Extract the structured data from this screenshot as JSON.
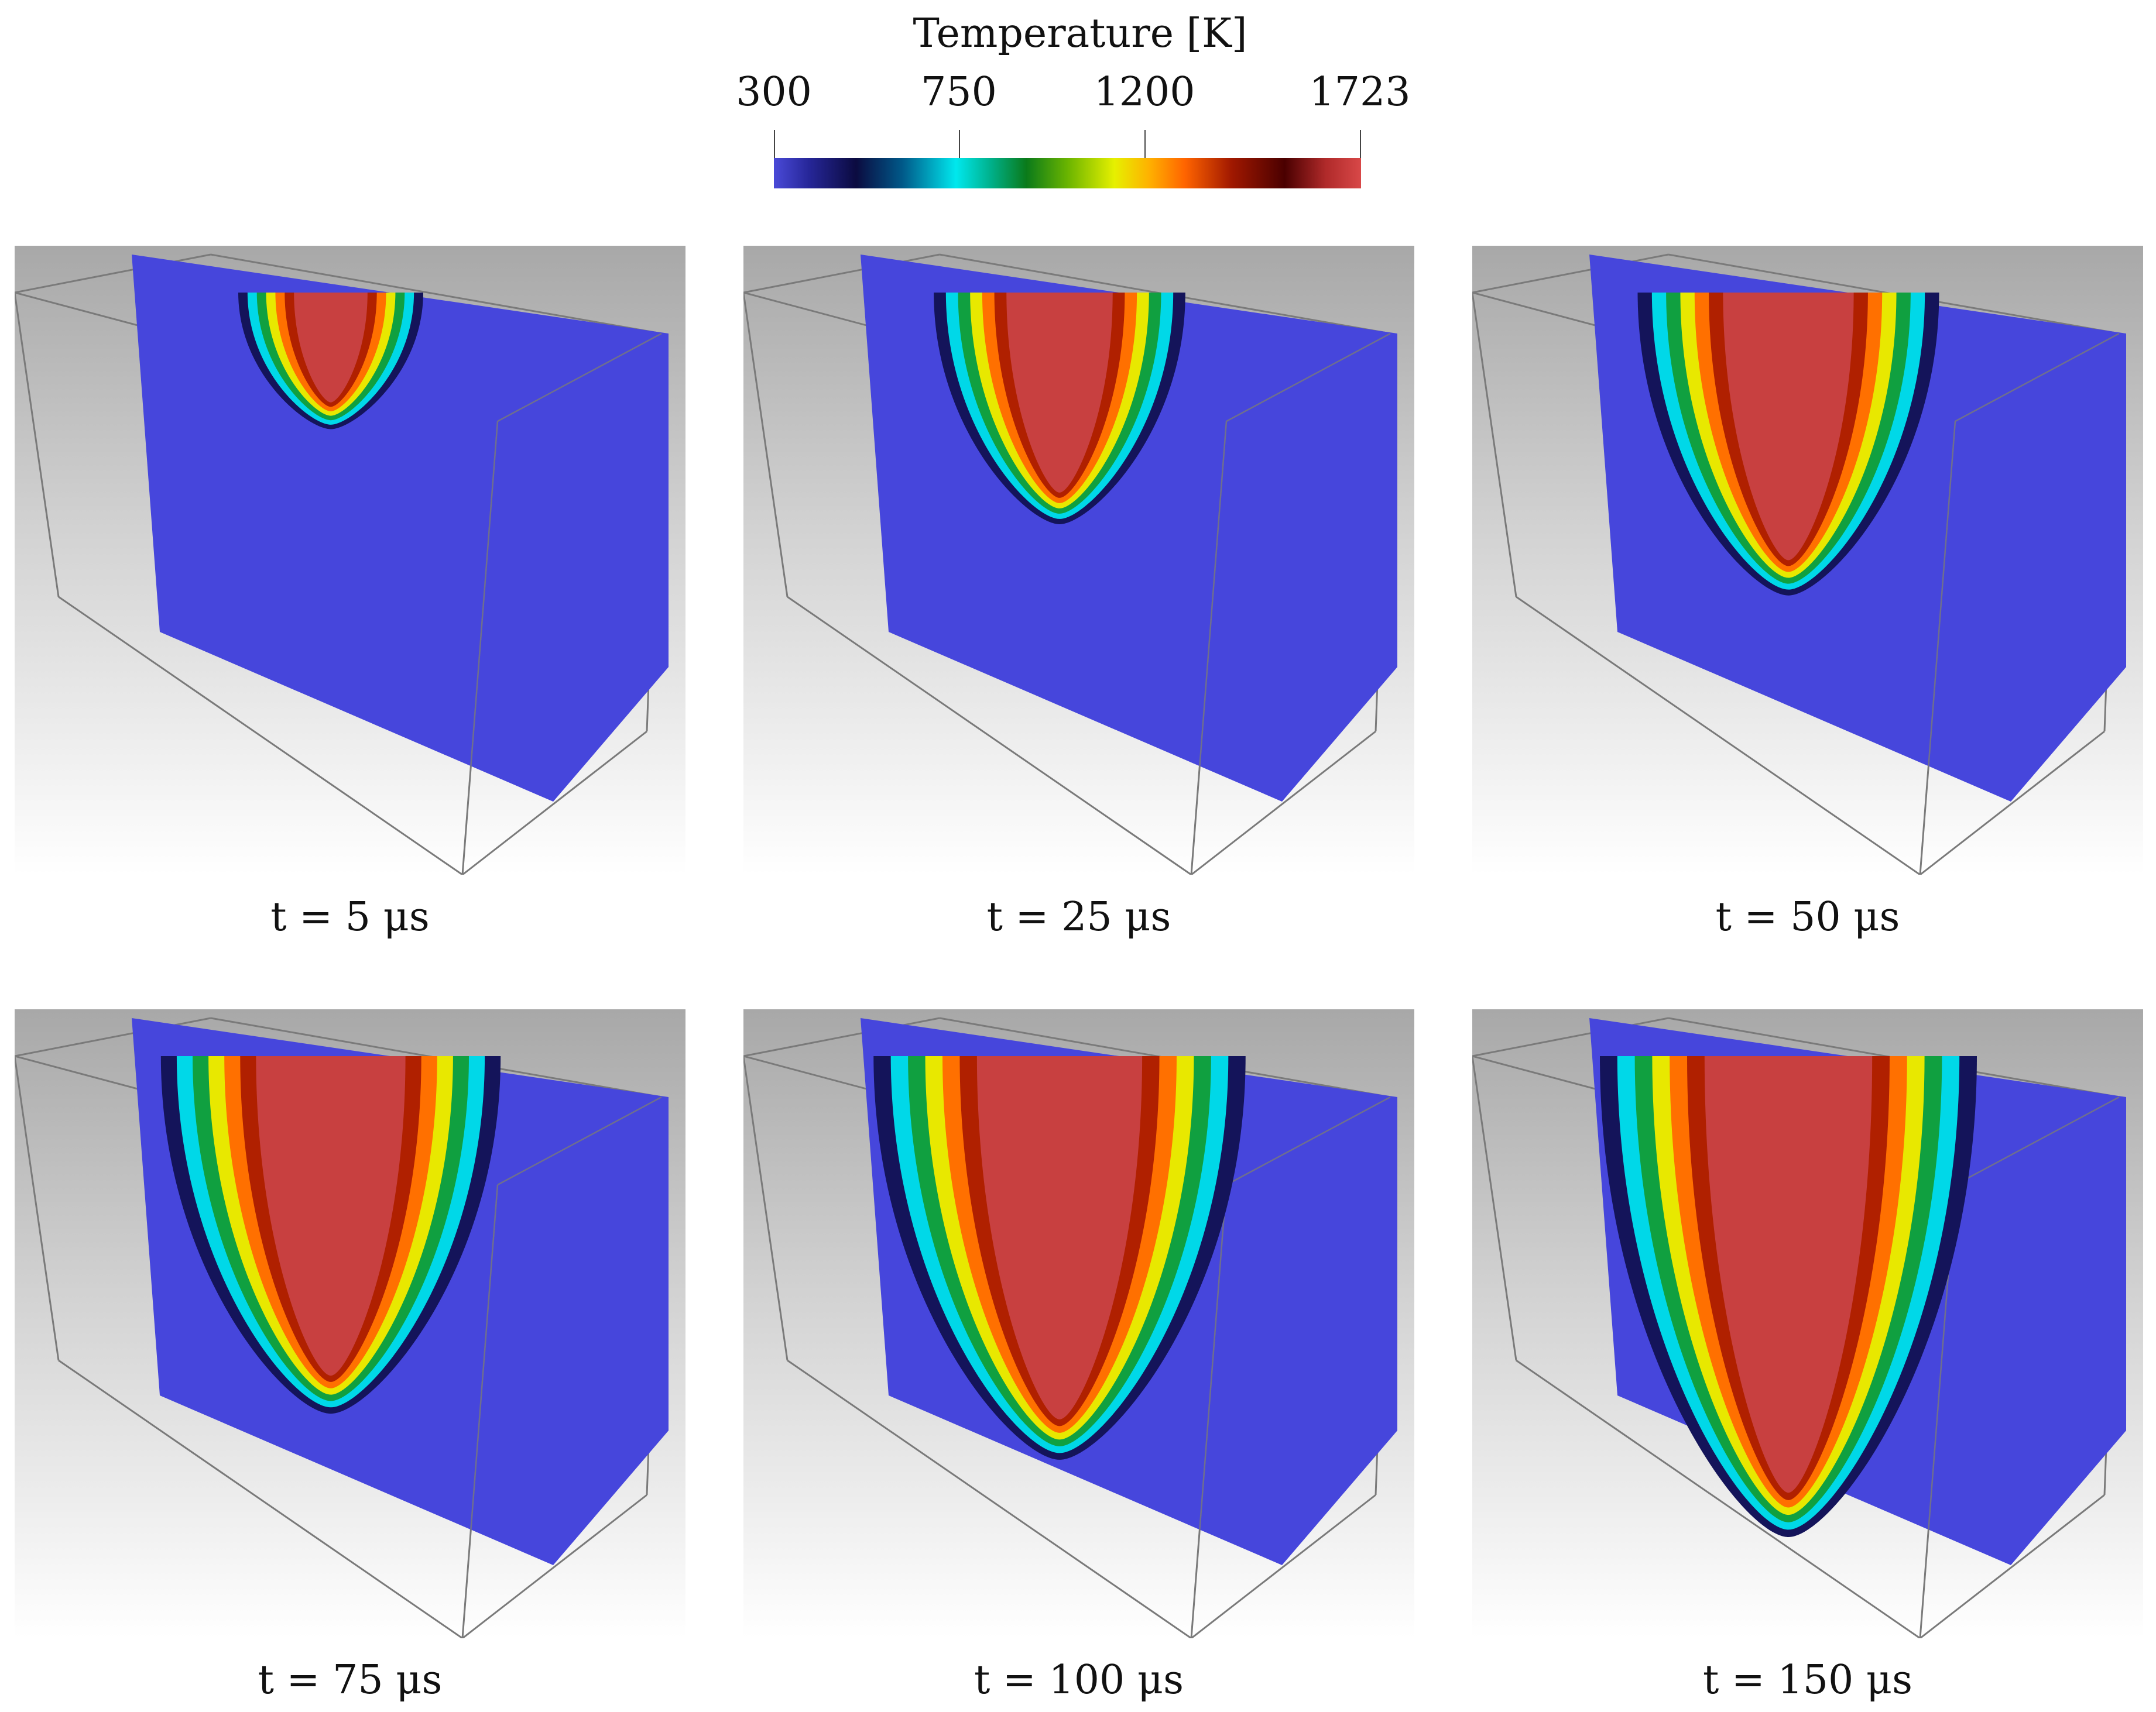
{
  "colorbar": {
    "title": "Temperature [K]",
    "ticks": [
      "300",
      "750",
      "1200",
      "1723"
    ],
    "tick_values": [
      300,
      750,
      1200,
      1723
    ],
    "min": 300,
    "max": 1723,
    "colormap": [
      "#4a4ad8",
      "#0b0b40",
      "#00e8ee",
      "#0a7a1a",
      "#e6f000",
      "#ff6400",
      "#4a0000",
      "#d84848"
    ]
  },
  "panels": [
    {
      "caption": "t = 5 μs",
      "time_us": 5
    },
    {
      "caption": "t = 25 μs",
      "time_us": 25
    },
    {
      "caption": "t = 50 μs",
      "time_us": 50
    },
    {
      "caption": "t = 75 μs",
      "time_us": 75
    },
    {
      "caption": "t = 100 μs",
      "time_us": 100
    },
    {
      "caption": "t = 150 μs",
      "time_us": 150
    }
  ],
  "colors": {
    "solid": "#4646dc",
    "melt": "#c84040",
    "frame": "#7a7a7a"
  }
}
